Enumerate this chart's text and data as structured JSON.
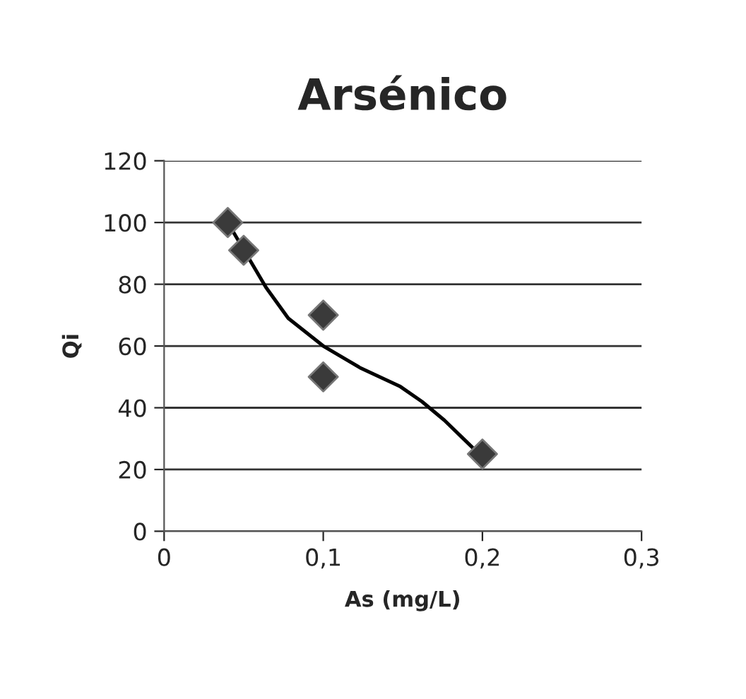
{
  "chart_data": {
    "type": "scatter",
    "title": "Arsénico",
    "xlabel": "As (mg/L)",
    "ylabel": "Qi",
    "series": [
      {
        "color": "#3a3a3a",
        "marker": "diamond",
        "x": [
          0.04,
          0.05,
          0.1,
          0.1,
          0.2
        ],
        "values": [
          100,
          91,
          70,
          50,
          25
        ]
      },
      {
        "type": "line",
        "color": "#000000",
        "marker": "none",
        "x": [
          0.04,
          0.064,
          0.078,
          0.1,
          0.123,
          0.148,
          0.162,
          0.176,
          0.19,
          0.2
        ],
        "values": [
          100,
          79,
          69,
          60,
          53,
          47,
          42,
          36,
          29,
          24
        ]
      }
    ],
    "xlim": [
      0,
      0.3
    ],
    "xticks": [
      {
        "value": 0,
        "label": "0"
      },
      {
        "value": 0.1,
        "label": "0,1"
      },
      {
        "value": 0.2,
        "label": "0,2"
      },
      {
        "value": 0.3,
        "label": "0,3"
      }
    ],
    "ylim": [
      0,
      120
    ],
    "yticks": [
      0,
      20,
      40,
      60,
      80,
      100,
      120
    ],
    "grid": "y",
    "legend": false
  }
}
